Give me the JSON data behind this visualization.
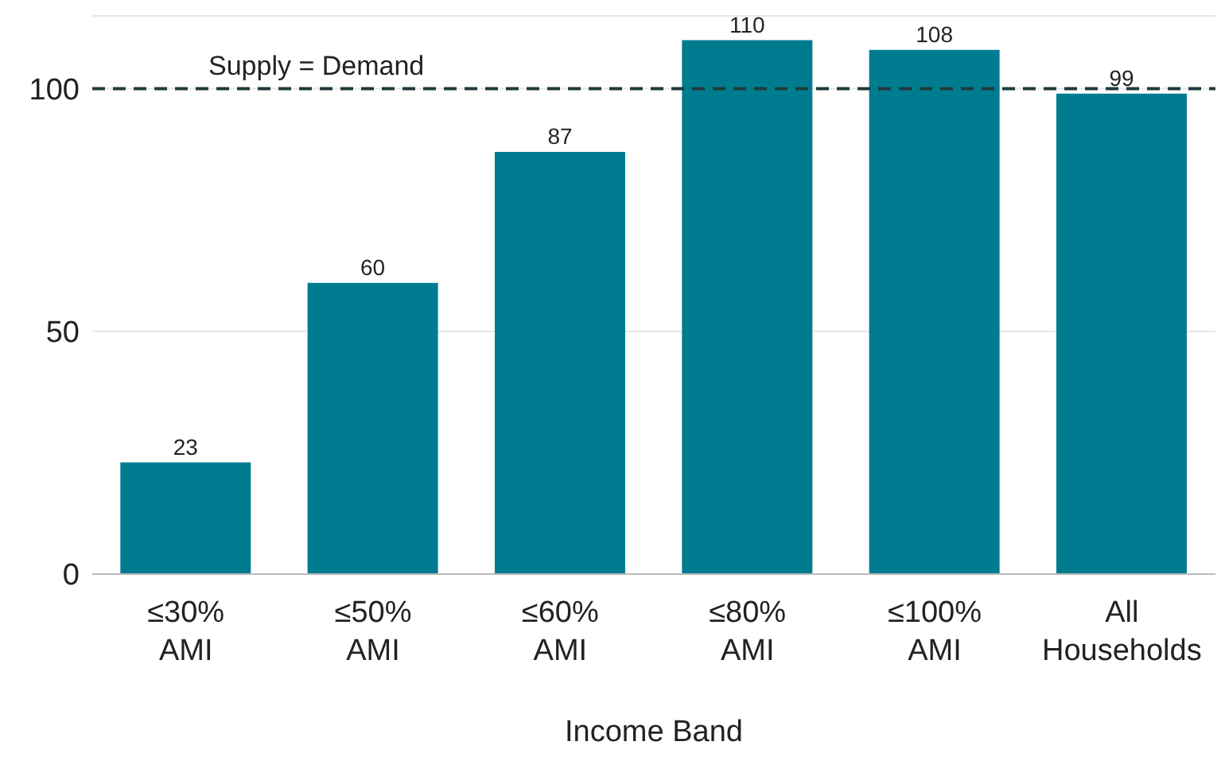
{
  "chart_data": {
    "type": "bar",
    "xlabel": "Income Band",
    "categories": [
      "≤30%\nAMI",
      "≤50%\nAMI",
      "≤60%\nAMI",
      "≤80%\nAMI",
      "≤100%\nAMI",
      "All\nHouseholds"
    ],
    "values": [
      23,
      60,
      87,
      110,
      108,
      99
    ],
    "color": "#007c91",
    "ylim": [
      0,
      115
    ],
    "yticks": [
      0,
      50,
      100
    ],
    "grid": "y",
    "data_labels": true,
    "legend": false,
    "ref_lines": [
      {
        "axis": "y",
        "value": 100,
        "label": "Supply = Demand",
        "color": "#1f3b3b",
        "line_style": "dashed"
      }
    ]
  }
}
